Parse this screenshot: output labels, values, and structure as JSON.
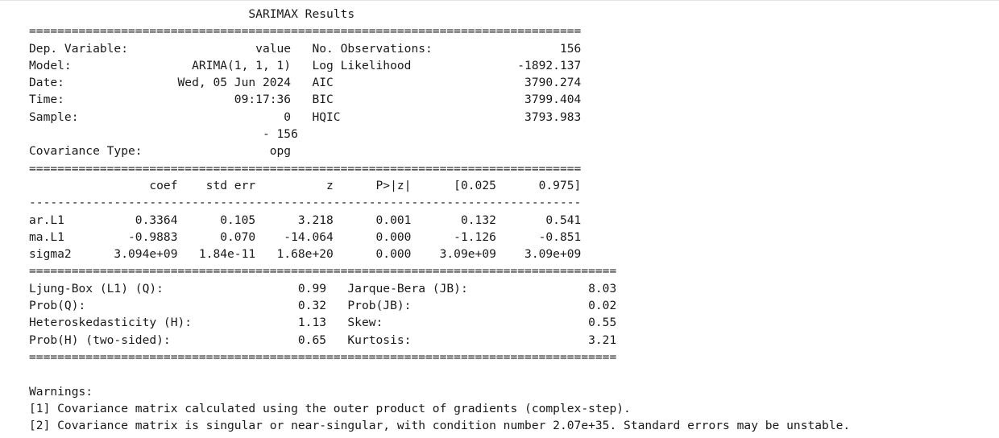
{
  "lines": [
    "                               SARIMAX Results                                ",
    "==============================================================================",
    "Dep. Variable:                  value   No. Observations:                  156",
    "Model:                 ARIMA(1, 1, 1)   Log Likelihood               -1892.137",
    "Date:                Wed, 05 Jun 2024   AIC                           3790.274",
    "Time:                        09:17:36   BIC                           3799.404",
    "Sample:                             0   HQIC                          3793.983",
    "                                 - 156                                        ",
    "Covariance Type:                  opg                                         ",
    "==============================================================================",
    "                 coef    std err          z      P>|z|      [0.025      0.975]",
    "------------------------------------------------------------------------------",
    "ar.L1          0.3364      0.105      3.218      0.001       0.132       0.541",
    "ma.L1         -0.9883      0.070    -14.064      0.000      -1.126      -0.851",
    "sigma2      3.094e+09   1.84e-11   1.68e+20      0.000    3.09e+09    3.09e+09",
    "===================================================================================",
    "Ljung-Box (L1) (Q):                   0.99   Jarque-Bera (JB):                 8.03",
    "Prob(Q):                              0.32   Prob(JB):                         0.02",
    "Heteroskedasticity (H):               1.13   Skew:                             0.55",
    "Prob(H) (two-sided):                  0.65   Kurtosis:                         3.21",
    "===================================================================================",
    "",
    "Warnings:",
    "[1] Covariance matrix calculated using the outer product of gradients (complex-step).",
    "[2] Covariance matrix is singular or near-singular, with condition number 2.07e+35. Standard errors may be unstable."
  ]
}
